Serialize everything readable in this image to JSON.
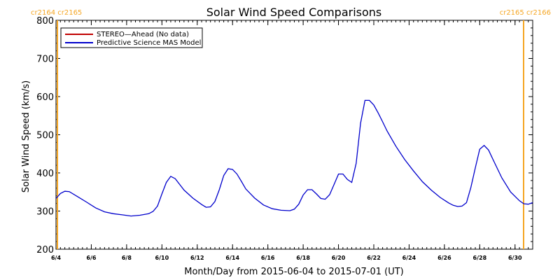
{
  "chart_data": {
    "type": "line",
    "title": "Solar Wind Speed Comparisons",
    "xlabel": "Month/Day from 2015-06-04 to 2015-07-01 (UT)",
    "ylabel": "Solar Wind Speed (km/s)",
    "xlim": [
      "2015-06-04",
      "2015-07-01"
    ],
    "ylim": [
      200,
      800
    ],
    "yticks": [
      200,
      300,
      400,
      500,
      600,
      700,
      800
    ],
    "xticks": [
      {
        "date": "2015-06-04",
        "label": "6/4"
      },
      {
        "date": "2015-06-06",
        "label": "6/6"
      },
      {
        "date": "2015-06-08",
        "label": "6/8"
      },
      {
        "date": "2015-06-10",
        "label": "6/10"
      },
      {
        "date": "2015-06-12",
        "label": "6/12"
      },
      {
        "date": "2015-06-14",
        "label": "6/14"
      },
      {
        "date": "2015-06-16",
        "label": "6/16"
      },
      {
        "date": "2015-06-18",
        "label": "6/18"
      },
      {
        "date": "2015-06-20",
        "label": "6/20"
      },
      {
        "date": "2015-06-22",
        "label": "6/22"
      },
      {
        "date": "2015-06-24",
        "label": "6/24"
      },
      {
        "date": "2015-06-26",
        "label": "6/26"
      },
      {
        "date": "2015-06-28",
        "label": "6/28"
      },
      {
        "date": "2015-06-30",
        "label": "6/30"
      }
    ],
    "carrington_markers": [
      {
        "date": "2015-06-04",
        "label": "cr2164 cr2165",
        "label_side": "left",
        "color": "#f5a623"
      },
      {
        "date": "2015-07-01",
        "label": "cr2165 cr2166",
        "label_side": "right",
        "color": "#f5a623"
      }
    ],
    "legend": {
      "placement": "top-left",
      "entries": [
        {
          "label": "STEREO—Ahead (No data)",
          "color": "#c00000"
        },
        {
          "label": "Predictive Science MAS Model",
          "color": "#0000cc"
        }
      ]
    },
    "series": [
      {
        "name": "Predictive Science MAS Model",
        "color": "#0000cc",
        "points": [
          [
            "2015-06-04T00:00",
            333
          ],
          [
            "2015-06-04T06:00",
            346
          ],
          [
            "2015-06-04T12:00",
            352
          ],
          [
            "2015-06-04T18:00",
            351
          ],
          [
            "2015-06-05T06:00",
            337
          ],
          [
            "2015-06-05T18:00",
            323
          ],
          [
            "2015-06-06T06:00",
            308
          ],
          [
            "2015-06-06T18:00",
            298
          ],
          [
            "2015-06-07T06:00",
            293
          ],
          [
            "2015-06-07T18:00",
            290
          ],
          [
            "2015-06-08T06:00",
            287
          ],
          [
            "2015-06-08T18:00",
            289
          ],
          [
            "2015-06-09T06:00",
            293
          ],
          [
            "2015-06-09T12:00",
            299
          ],
          [
            "2015-06-09T18:00",
            313
          ],
          [
            "2015-06-10T00:00",
            345
          ],
          [
            "2015-06-10T06:00",
            375
          ],
          [
            "2015-06-10T12:00",
            391
          ],
          [
            "2015-06-10T18:00",
            385
          ],
          [
            "2015-06-11T00:00",
            370
          ],
          [
            "2015-06-11T06:00",
            355
          ],
          [
            "2015-06-11T18:00",
            334
          ],
          [
            "2015-06-12T06:00",
            317
          ],
          [
            "2015-06-12T12:00",
            310
          ],
          [
            "2015-06-12T18:00",
            311
          ],
          [
            "2015-06-13T00:00",
            325
          ],
          [
            "2015-06-13T06:00",
            356
          ],
          [
            "2015-06-13T12:00",
            393
          ],
          [
            "2015-06-13T18:00",
            411
          ],
          [
            "2015-06-14T00:00",
            409
          ],
          [
            "2015-06-14T06:00",
            397
          ],
          [
            "2015-06-14T12:00",
            378
          ],
          [
            "2015-06-14T18:00",
            358
          ],
          [
            "2015-06-15T06:00",
            334
          ],
          [
            "2015-06-15T18:00",
            316
          ],
          [
            "2015-06-16T06:00",
            306
          ],
          [
            "2015-06-16T18:00",
            302
          ],
          [
            "2015-06-17T06:00",
            301
          ],
          [
            "2015-06-17T12:00",
            305
          ],
          [
            "2015-06-17T18:00",
            318
          ],
          [
            "2015-06-18T00:00",
            342
          ],
          [
            "2015-06-18T06:00",
            356
          ],
          [
            "2015-06-18T12:00",
            356
          ],
          [
            "2015-06-18T18:00",
            345
          ],
          [
            "2015-06-19T00:00",
            333
          ],
          [
            "2015-06-19T06:00",
            331
          ],
          [
            "2015-06-19T12:00",
            343
          ],
          [
            "2015-06-19T18:00",
            370
          ],
          [
            "2015-06-20T00:00",
            397
          ],
          [
            "2015-06-20T06:00",
            397
          ],
          [
            "2015-06-20T12:00",
            383
          ],
          [
            "2015-06-20T18:00",
            375
          ],
          [
            "2015-06-21T00:00",
            425
          ],
          [
            "2015-06-21T06:00",
            530
          ],
          [
            "2015-06-21T12:00",
            590
          ],
          [
            "2015-06-21T18:00",
            590
          ],
          [
            "2015-06-22T00:00",
            578
          ],
          [
            "2015-06-22T06:00",
            557
          ],
          [
            "2015-06-22T12:00",
            534
          ],
          [
            "2015-06-22T18:00",
            510
          ],
          [
            "2015-06-23T06:00",
            470
          ],
          [
            "2015-06-23T18:00",
            435
          ],
          [
            "2015-06-24T06:00",
            405
          ],
          [
            "2015-06-24T18:00",
            377
          ],
          [
            "2015-06-25T06:00",
            355
          ],
          [
            "2015-06-25T18:00",
            336
          ],
          [
            "2015-06-26T06:00",
            321
          ],
          [
            "2015-06-26T12:00",
            315
          ],
          [
            "2015-06-26T18:00",
            312
          ],
          [
            "2015-06-27T00:00",
            313
          ],
          [
            "2015-06-27T06:00",
            322
          ],
          [
            "2015-06-27T12:00",
            362
          ],
          [
            "2015-06-27T18:00",
            413
          ],
          [
            "2015-06-28T00:00",
            462
          ],
          [
            "2015-06-28T06:00",
            472
          ],
          [
            "2015-06-28T12:00",
            460
          ],
          [
            "2015-06-28T18:00",
            435
          ],
          [
            "2015-06-29T06:00",
            387
          ],
          [
            "2015-06-29T18:00",
            350
          ],
          [
            "2015-06-30T06:00",
            327
          ],
          [
            "2015-06-30T12:00",
            319
          ],
          [
            "2015-06-30T18:00",
            318
          ],
          [
            "2015-07-01T00:00",
            322
          ]
        ]
      }
    ]
  }
}
